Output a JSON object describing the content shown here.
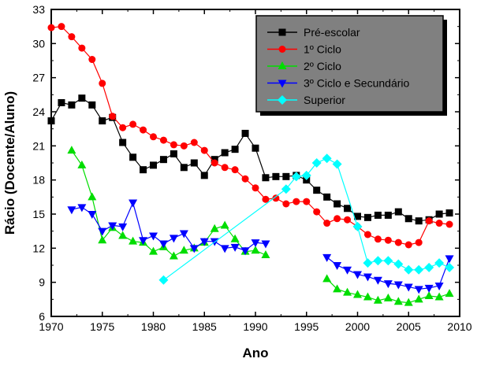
{
  "chart_data": {
    "type": "line",
    "xlabel": "Ano",
    "ylabel": "Rácio (Docente/Aluno)",
    "xlim": [
      1970,
      2010
    ],
    "ylim": [
      6,
      33
    ],
    "x_ticks": [
      1970,
      1975,
      1980,
      1985,
      1990,
      1995,
      2000,
      2005,
      2010
    ],
    "y_ticks": [
      6,
      9,
      12,
      15,
      18,
      21,
      24,
      27,
      30,
      33
    ],
    "grid": false,
    "legend_position": "top-right",
    "legend_background": "#808080",
    "series": [
      {
        "name": "Pré-escolar",
        "color": "#000000",
        "marker": "square",
        "x": [
          1970,
          1971,
          1972,
          1973,
          1974,
          1975,
          1976,
          1977,
          1978,
          1979,
          1980,
          1981,
          1982,
          1983,
          1984,
          1985,
          1986,
          1987,
          1988,
          1989,
          1990,
          1991,
          1992,
          1993,
          1994,
          1995,
          1996,
          1997,
          1998,
          1999,
          2000,
          2001,
          2002,
          2003,
          2004,
          2005,
          2006,
          2007,
          2008,
          2009
        ],
        "values": [
          23.2,
          24.8,
          24.6,
          25.2,
          24.6,
          23.2,
          23.5,
          21.3,
          20.0,
          18.9,
          19.3,
          19.8,
          20.3,
          19.1,
          19.5,
          18.4,
          19.8,
          20.4,
          20.7,
          22.1,
          20.8,
          18.2,
          18.3,
          18.3,
          18.4,
          18.0,
          17.1,
          16.5,
          15.9,
          15.5,
          14.8,
          14.7,
          14.9,
          14.9,
          15.2,
          14.6,
          14.4,
          14.5,
          15.0,
          15.1
        ]
      },
      {
        "name": "1º Ciclo",
        "color": "#ff0000",
        "marker": "circle",
        "x": [
          1970,
          1971,
          1972,
          1973,
          1974,
          1975,
          1976,
          1977,
          1978,
          1979,
          1980,
          1981,
          1982,
          1983,
          1984,
          1985,
          1986,
          1987,
          1988,
          1989,
          1990,
          1991,
          1992,
          1993,
          1994,
          1995,
          1996,
          1997,
          1998,
          1999,
          2000,
          2001,
          2002,
          2003,
          2004,
          2005,
          2006,
          2007,
          2008,
          2009
        ],
        "values": [
          31.4,
          31.5,
          30.6,
          29.6,
          28.6,
          26.5,
          23.6,
          22.6,
          22.9,
          22.4,
          21.8,
          21.5,
          21.1,
          21.0,
          21.3,
          20.6,
          19.5,
          19.1,
          18.9,
          18.1,
          17.3,
          16.3,
          16.4,
          15.9,
          16.1,
          16.1,
          15.2,
          14.2,
          14.6,
          14.5,
          13.9,
          13.2,
          12.8,
          12.7,
          12.5,
          12.3,
          12.5,
          14.4,
          14.2,
          14.1
        ]
      },
      {
        "name": "2º Ciclo",
        "color": "#00dd00",
        "marker": "triangle-up",
        "segments": [
          {
            "x": [
              1972,
              1973,
              1974,
              1975,
              1976,
              1977,
              1978,
              1979,
              1980,
              1981,
              1982,
              1983,
              1984,
              1985,
              1986,
              1987,
              1988,
              1989,
              1990,
              1991
            ],
            "values": [
              20.6,
              19.3,
              16.5,
              12.7,
              13.8,
              13.1,
              12.6,
              12.5,
              11.7,
              12.1,
              11.3,
              11.8,
              12.0,
              12.5,
              13.7,
              14.0,
              12.8,
              11.7,
              11.8,
              11.4
            ]
          },
          {
            "x": [
              1997,
              1998,
              1999,
              2000,
              2001,
              2002,
              2003,
              2004,
              2005,
              2006,
              2007,
              2008,
              2009
            ],
            "values": [
              9.3,
              8.4,
              8.1,
              7.9,
              7.7,
              7.4,
              7.6,
              7.3,
              7.2,
              7.5,
              7.8,
              7.7,
              8.0
            ]
          }
        ]
      },
      {
        "name": "3º Ciclo e Secundário",
        "color": "#0000ff",
        "marker": "triangle-down",
        "segments": [
          {
            "x": [
              1972,
              1973,
              1974,
              1975,
              1976,
              1977,
              1978,
              1979,
              1980,
              1981,
              1982,
              1983,
              1984,
              1985,
              1986,
              1987,
              1988,
              1989,
              1990,
              1991
            ],
            "values": [
              15.4,
              15.6,
              15.0,
              13.5,
              14.0,
              13.9,
              16.0,
              12.7,
              13.1,
              12.4,
              12.9,
              13.3,
              12.0,
              12.6,
              12.6,
              12.0,
              12.1,
              11.8,
              12.5,
              12.4
            ]
          },
          {
            "x": [
              1997,
              1998,
              1999,
              2000,
              2001,
              2002,
              2003,
              2004,
              2005,
              2006,
              2007,
              2008,
              2009
            ],
            "values": [
              11.2,
              10.5,
              10.1,
              9.7,
              9.5,
              9.2,
              8.9,
              8.8,
              8.6,
              8.4,
              8.5,
              8.7,
              11.1
            ]
          }
        ]
      },
      {
        "name": "Superior",
        "color": "#00ffff",
        "marker": "diamond",
        "x": [
          1981,
          1993,
          1994,
          1995,
          1996,
          1997,
          1998,
          2000,
          2001,
          2002,
          2003,
          2004,
          2005,
          2006,
          2007,
          2008,
          2009
        ],
        "values": [
          9.2,
          17.2,
          18.3,
          18.4,
          19.5,
          19.9,
          19.4,
          13.9,
          10.7,
          10.9,
          10.9,
          10.6,
          10.1,
          10.1,
          10.3,
          10.7,
          10.3
        ]
      }
    ]
  }
}
